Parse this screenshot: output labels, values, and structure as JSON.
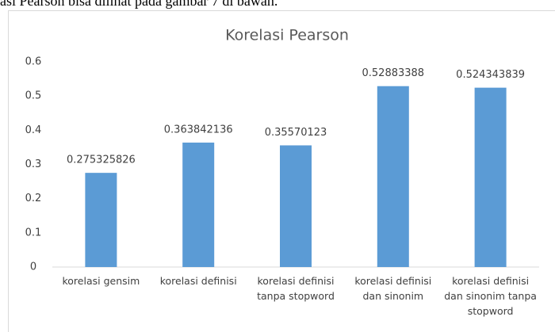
{
  "caption": "asi Pearson bisa dilihat pada gambar 7 di bawah.",
  "chart_data": {
    "type": "bar",
    "title": "Korelasi Pearson",
    "categories": [
      "korelasi gensim",
      "korelasi definisi",
      "korelasi definisi tanpa stopword",
      "korelasi definisi dan sinonim",
      "korelasi definisi dan sinonim tanpa stopword"
    ],
    "values": [
      0.275325826,
      0.363842136,
      0.35570123,
      0.52883388,
      0.524343839
    ],
    "color": "#5b9bd5",
    "ylim": [
      0,
      0.6
    ],
    "yticks": [
      0,
      0.1,
      0.2,
      0.3,
      0.4,
      0.5,
      0.6
    ],
    "grid": false
  }
}
